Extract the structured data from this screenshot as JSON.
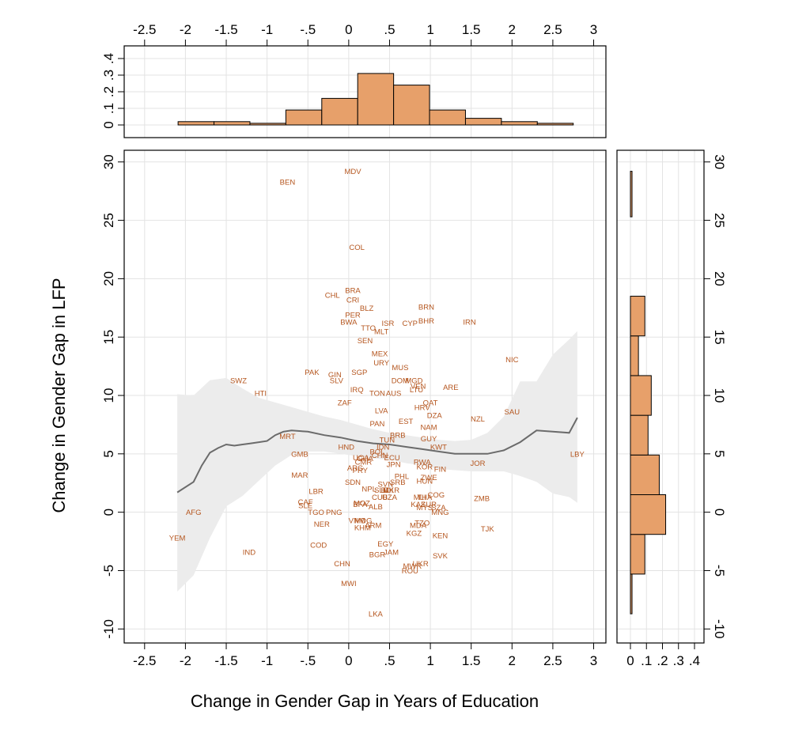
{
  "chart_data": [
    {
      "type": "scatter",
      "panel": "main",
      "xlabel": "Change in Gender Gap in Years of Education",
      "ylabel": "Change in Gender Gap in LFP",
      "xlim": [
        -2.75,
        3.15
      ],
      "ylim": [
        -11.2,
        31
      ],
      "x_ticks": [
        -2.5,
        -2,
        -1.5,
        -1,
        -0.5,
        0,
        0.5,
        1,
        1.5,
        2,
        2.5,
        3
      ],
      "x_tick_labels": [
        "-2.5",
        "-2",
        "-1.5",
        "-1",
        "-.5",
        "0",
        ".5",
        "1",
        "1.5",
        "2",
        "2.5",
        "3"
      ],
      "y_ticks": [
        -10,
        -5,
        0,
        5,
        10,
        15,
        20,
        25,
        30
      ],
      "y_tick_labels": [
        "-10",
        "-5",
        "0",
        "5",
        "10",
        "15",
        "20",
        "25",
        "30"
      ],
      "grid": true,
      "label_color": "#b5561f",
      "points": [
        {
          "label": "MDV",
          "x": 0.05,
          "y": 29.2
        },
        {
          "label": "BEN",
          "x": -0.75,
          "y": 28.3
        },
        {
          "label": "COL",
          "x": 0.1,
          "y": 22.7
        },
        {
          "label": "CHL",
          "x": -0.2,
          "y": 18.6
        },
        {
          "label": "BRA",
          "x": 0.05,
          "y": 19.0
        },
        {
          "label": "CRI",
          "x": 0.05,
          "y": 18.2
        },
        {
          "label": "BLZ",
          "x": 0.22,
          "y": 17.5
        },
        {
          "label": "BRN",
          "x": 0.95,
          "y": 17.6
        },
        {
          "label": "PER",
          "x": 0.05,
          "y": 16.9
        },
        {
          "label": "BWA",
          "x": 0.0,
          "y": 16.3
        },
        {
          "label": "ISR",
          "x": 0.48,
          "y": 16.2
        },
        {
          "label": "CYP",
          "x": 0.75,
          "y": 16.2
        },
        {
          "label": "BHR",
          "x": 0.95,
          "y": 16.4
        },
        {
          "label": "IRN",
          "x": 1.48,
          "y": 16.3
        },
        {
          "label": "TTO",
          "x": 0.24,
          "y": 15.8
        },
        {
          "label": "MLT",
          "x": 0.4,
          "y": 15.5
        },
        {
          "label": "SEN",
          "x": 0.2,
          "y": 14.7
        },
        {
          "label": "MEX",
          "x": 0.38,
          "y": 13.6
        },
        {
          "label": "URY",
          "x": 0.4,
          "y": 12.8
        },
        {
          "label": "NIC",
          "x": 2.0,
          "y": 13.1
        },
        {
          "label": "MUS",
          "x": 0.63,
          "y": 12.4
        },
        {
          "label": "PAK",
          "x": -0.45,
          "y": 12.0
        },
        {
          "label": "SGP",
          "x": 0.13,
          "y": 12.0
        },
        {
          "label": "GIN",
          "x": -0.17,
          "y": 11.8
        },
        {
          "label": "SLV",
          "x": -0.15,
          "y": 11.3
        },
        {
          "label": "SWZ",
          "x": -1.35,
          "y": 11.3
        },
        {
          "label": "DOM",
          "x": 0.63,
          "y": 11.3
        },
        {
          "label": "MGD",
          "x": 0.8,
          "y": 11.3
        },
        {
          "label": "VEN",
          "x": 0.85,
          "y": 10.8
        },
        {
          "label": "LTU",
          "x": 0.83,
          "y": 10.5
        },
        {
          "label": "ARE",
          "x": 1.25,
          "y": 10.7
        },
        {
          "label": "HTI",
          "x": -1.08,
          "y": 10.2
        },
        {
          "label": "IRQ",
          "x": 0.1,
          "y": 10.5
        },
        {
          "label": "TON",
          "x": 0.35,
          "y": 10.2
        },
        {
          "label": "AUS",
          "x": 0.55,
          "y": 10.2
        },
        {
          "label": "QAT",
          "x": 1.0,
          "y": 9.4
        },
        {
          "label": "ZAF",
          "x": -0.05,
          "y": 9.4
        },
        {
          "label": "HRV",
          "x": 0.9,
          "y": 9.0
        },
        {
          "label": "SAU",
          "x": 2.0,
          "y": 8.6
        },
        {
          "label": "LVA",
          "x": 0.4,
          "y": 8.7
        },
        {
          "label": "DZA",
          "x": 1.05,
          "y": 8.3
        },
        {
          "label": "NZL",
          "x": 1.58,
          "y": 8.0
        },
        {
          "label": "EST",
          "x": 0.7,
          "y": 7.8
        },
        {
          "label": "PAN",
          "x": 0.35,
          "y": 7.6
        },
        {
          "label": "NAM",
          "x": 0.98,
          "y": 7.3
        },
        {
          "label": "MRT",
          "x": -0.75,
          "y": 6.5
        },
        {
          "label": "BRB",
          "x": 0.6,
          "y": 6.6
        },
        {
          "label": "GUY",
          "x": 0.98,
          "y": 6.3
        },
        {
          "label": "TUN",
          "x": 0.47,
          "y": 6.2
        },
        {
          "label": "KWT",
          "x": 1.1,
          "y": 5.6
        },
        {
          "label": "HND",
          "x": -0.03,
          "y": 5.6
        },
        {
          "label": "IDN",
          "x": 0.42,
          "y": 5.6
        },
        {
          "label": "BOL",
          "x": 0.35,
          "y": 5.2
        },
        {
          "label": "CHN",
          "x": 0.38,
          "y": 4.9
        },
        {
          "label": "ECU",
          "x": 0.53,
          "y": 4.7
        },
        {
          "label": "GMB",
          "x": -0.6,
          "y": 5.0
        },
        {
          "label": "UGA",
          "x": 0.15,
          "y": 4.7
        },
        {
          "label": "GHA",
          "x": 0.2,
          "y": 4.6
        },
        {
          "label": "CMR",
          "x": 0.18,
          "y": 4.3
        },
        {
          "label": "RWA",
          "x": 0.9,
          "y": 4.3
        },
        {
          "label": "JPN",
          "x": 0.55,
          "y": 4.1
        },
        {
          "label": "KOR",
          "x": 0.93,
          "y": 3.9
        },
        {
          "label": "JOR",
          "x": 1.58,
          "y": 4.2
        },
        {
          "label": "LBY",
          "x": 2.8,
          "y": 5.0
        },
        {
          "label": "ARG",
          "x": 0.08,
          "y": 3.8
        },
        {
          "label": "PRY",
          "x": 0.14,
          "y": 3.6
        },
        {
          "label": "FIN",
          "x": 1.12,
          "y": 3.7
        },
        {
          "label": "MAR",
          "x": -0.6,
          "y": 3.2
        },
        {
          "label": "PHL",
          "x": 0.65,
          "y": 3.1
        },
        {
          "label": "ZWE",
          "x": 0.98,
          "y": 3.0
        },
        {
          "label": "SRB",
          "x": 0.6,
          "y": 2.6
        },
        {
          "label": "HUN",
          "x": 0.93,
          "y": 2.7
        },
        {
          "label": "SDN",
          "x": 0.05,
          "y": 2.6
        },
        {
          "label": "SVN",
          "x": 0.45,
          "y": 2.4
        },
        {
          "label": "NPL",
          "x": 0.25,
          "y": 2.0
        },
        {
          "label": "SLB",
          "x": 0.4,
          "y": 1.9
        },
        {
          "label": "BDI",
          "x": 0.47,
          "y": 1.9
        },
        {
          "label": "MKR",
          "x": 0.52,
          "y": 1.9
        },
        {
          "label": "LBR",
          "x": -0.4,
          "y": 1.8
        },
        {
          "label": "COG",
          "x": 1.07,
          "y": 1.5
        },
        {
          "label": "MLI",
          "x": 0.87,
          "y": 1.3
        },
        {
          "label": "THA",
          "x": 0.93,
          "y": 1.3
        },
        {
          "label": "CUB",
          "x": 0.38,
          "y": 1.3
        },
        {
          "label": "UZA",
          "x": 0.5,
          "y": 1.3
        },
        {
          "label": "ZMB",
          "x": 1.63,
          "y": 1.2
        },
        {
          "label": "CAF",
          "x": -0.53,
          "y": 0.9
        },
        {
          "label": "SLE",
          "x": -0.53,
          "y": 0.6
        },
        {
          "label": "BFA",
          "x": 0.14,
          "y": 0.7
        },
        {
          "label": "MOZ",
          "x": 0.16,
          "y": 0.8
        },
        {
          "label": "ALB",
          "x": 0.33,
          "y": 0.5
        },
        {
          "label": "KAZ",
          "x": 0.85,
          "y": 0.7
        },
        {
          "label": "SUR",
          "x": 0.98,
          "y": 0.7
        },
        {
          "label": "MYS",
          "x": 0.93,
          "y": 0.4
        },
        {
          "label": "SZA",
          "x": 1.1,
          "y": 0.4
        },
        {
          "label": "MNG",
          "x": 1.12,
          "y": 0.0
        },
        {
          "label": "AFG",
          "x": -1.9,
          "y": 0.0
        },
        {
          "label": "TGO",
          "x": -0.4,
          "y": 0.0
        },
        {
          "label": "PNG",
          "x": -0.18,
          "y": 0.0
        },
        {
          "label": "VNM",
          "x": 0.1,
          "y": -0.7
        },
        {
          "label": "MDG",
          "x": 0.18,
          "y": -0.7
        },
        {
          "label": "NER",
          "x": -0.33,
          "y": -1.0
        },
        {
          "label": "KHM",
          "x": 0.17,
          "y": -1.3
        },
        {
          "label": "ARM",
          "x": 0.3,
          "y": -1.1
        },
        {
          "label": "MDA",
          "x": 0.85,
          "y": -1.1
        },
        {
          "label": "TZO",
          "x": 0.9,
          "y": -0.9
        },
        {
          "label": "TJK",
          "x": 1.7,
          "y": -1.4
        },
        {
          "label": "KGZ",
          "x": 0.8,
          "y": -1.8
        },
        {
          "label": "KEN",
          "x": 1.12,
          "y": -2.0
        },
        {
          "label": "YEM",
          "x": -2.1,
          "y": -2.2
        },
        {
          "label": "COD",
          "x": -0.37,
          "y": -2.8
        },
        {
          "label": "EGY",
          "x": 0.45,
          "y": -2.7
        },
        {
          "label": "IND",
          "x": -1.22,
          "y": -3.4
        },
        {
          "label": "JAM",
          "x": 0.52,
          "y": -3.4
        },
        {
          "label": "BGR",
          "x": 0.35,
          "y": -3.6
        },
        {
          "label": "SVK",
          "x": 1.12,
          "y": -3.7
        },
        {
          "label": "CHN",
          "x": -0.08,
          "y": -4.4
        },
        {
          "label": "UKR",
          "x": 0.88,
          "y": -4.4
        },
        {
          "label": "MWR",
          "x": 0.78,
          "y": -4.6
        },
        {
          "label": "ROU",
          "x": 0.75,
          "y": -5.0
        },
        {
          "label": "MWI",
          "x": 0.0,
          "y": -6.1
        },
        {
          "label": "LKA",
          "x": 0.33,
          "y": -8.7
        }
      ],
      "fit_line": {
        "x": [
          -2.1,
          -1.9,
          -1.8,
          -1.7,
          -1.6,
          -1.5,
          -1.4,
          -1.3,
          -1.2,
          -1.1,
          -1.0,
          -0.9,
          -0.8,
          -0.7,
          -0.5,
          -0.3,
          -0.1,
          0.1,
          0.3,
          0.5,
          0.7,
          0.9,
          1.1,
          1.3,
          1.5,
          1.7,
          1.9,
          2.1,
          2.3,
          2.5,
          2.7,
          2.8
        ],
        "y": [
          1.7,
          2.6,
          4.0,
          5.1,
          5.5,
          5.8,
          5.7,
          5.8,
          5.9,
          6.0,
          6.1,
          6.6,
          6.9,
          7.0,
          6.9,
          6.6,
          6.4,
          6.1,
          5.9,
          5.8,
          5.6,
          5.4,
          5.2,
          5.0,
          5.0,
          5.0,
          5.3,
          6.0,
          7.0,
          6.9,
          6.8,
          8.1
        ]
      },
      "ci_band": {
        "x": [
          -2.1,
          -1.9,
          -1.7,
          -1.5,
          -1.3,
          -1.1,
          -0.9,
          -0.7,
          -0.5,
          -0.3,
          -0.1,
          0.1,
          0.3,
          0.5,
          0.7,
          0.9,
          1.1,
          1.3,
          1.5,
          1.7,
          1.9,
          2.1,
          2.3,
          2.5,
          2.7,
          2.8
        ],
        "upper": [
          10.1,
          10.0,
          11.3,
          11.5,
          10.6,
          9.8,
          9.4,
          9.0,
          8.6,
          8.2,
          7.9,
          7.5,
          7.1,
          6.8,
          6.6,
          6.4,
          6.2,
          6.1,
          6.2,
          6.8,
          8.2,
          11.2,
          11.2,
          13.5,
          14.8,
          15.5
        ],
        "lower": [
          -6.8,
          -5.4,
          -2.2,
          0.5,
          1.4,
          2.7,
          4.0,
          4.9,
          5.2,
          5.2,
          5.0,
          4.8,
          4.6,
          4.5,
          4.2,
          4.0,
          3.7,
          3.6,
          3.5,
          3.5,
          3.5,
          3.1,
          2.6,
          1.6,
          1.3,
          0.8
        ]
      },
      "line_color": "#6b6b6b",
      "band_color": "#ececec"
    },
    {
      "type": "bar",
      "panel": "top-histogram",
      "orientation": "vertical",
      "bin_edges": [
        -2.09,
        -1.65,
        -1.21,
        -0.77,
        -0.33,
        0.11,
        0.55,
        0.99,
        1.43,
        1.87,
        2.31,
        2.75
      ],
      "values": [
        0.02,
        0.02,
        0.01,
        0.09,
        0.16,
        0.31,
        0.24,
        0.09,
        0.04,
        0.02,
        0.01
      ],
      "ylim": [
        0,
        0.4
      ],
      "y_ticks": [
        0,
        0.1,
        0.2,
        0.3,
        0.4
      ],
      "y_tick_labels": [
        "0",
        ".1",
        ".2",
        ".3",
        ".4"
      ],
      "bar_color": "#e7a06a"
    },
    {
      "type": "bar",
      "panel": "right-histogram",
      "orientation": "horizontal",
      "bin_edges": [
        -8.7,
        -5.3,
        -1.9,
        1.5,
        4.9,
        8.3,
        11.7,
        15.1,
        18.5,
        21.9,
        25.3,
        29.2
      ],
      "values": [
        0.01,
        0.09,
        0.22,
        0.18,
        0.11,
        0.13,
        0.05,
        0.09,
        0.0,
        0.0,
        0.01
      ],
      "xlim": [
        0,
        0.4
      ],
      "x_ticks": [
        0,
        0.1,
        0.2,
        0.3,
        0.4
      ],
      "x_tick_labels": [
        "0",
        ".1",
        ".2",
        ".3",
        ".4"
      ],
      "bar_color": "#e7a06a"
    }
  ]
}
